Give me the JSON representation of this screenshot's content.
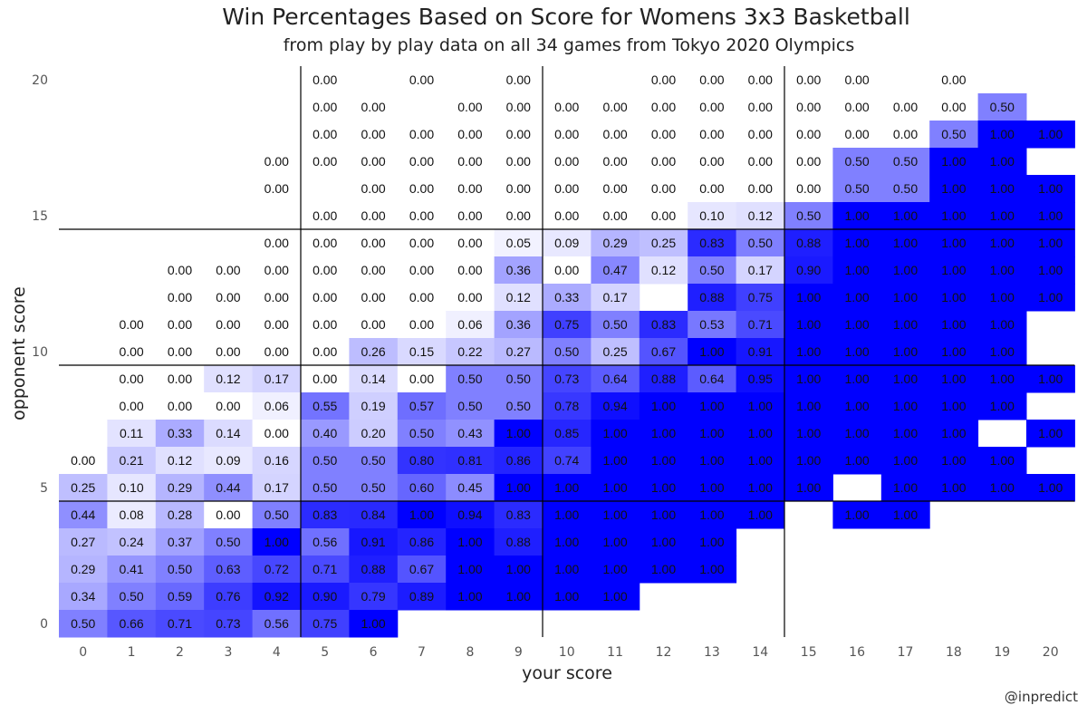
{
  "header": {
    "title": "Win Percentages Based on Score for Womens 3x3 Basketball",
    "subtitle": "from play by play data on all 34 games from Tokyo 2020 Olympics",
    "credit": "@inpredict"
  },
  "colors": {
    "low": "#ffffff",
    "high": "#0000ff",
    "divider": "#000000"
  },
  "chart_data": {
    "type": "heatmap",
    "xlabel": "your score",
    "ylabel": "opponent score",
    "x_ticks": [
      0,
      1,
      2,
      3,
      4,
      5,
      6,
      7,
      8,
      9,
      10,
      11,
      12,
      13,
      14,
      15,
      16,
      17,
      18,
      19,
      20
    ],
    "y_tick_labels": [
      "0",
      "5",
      "10",
      "15",
      "20"
    ],
    "y_tick_values": [
      0,
      5,
      10,
      15,
      20
    ],
    "xlim": [
      0,
      20
    ],
    "ylim": [
      0,
      20
    ],
    "color_range": [
      0,
      1
    ],
    "divider_x": [
      4.5,
      9.5,
      14.5
    ],
    "divider_y": [
      4.5,
      9.5,
      14.5
    ],
    "rows": [
      {
        "opp": 20,
        "cells": [
          null,
          null,
          null,
          null,
          null,
          "0.00",
          null,
          "0.00",
          null,
          "0.00",
          null,
          null,
          "0.00",
          "0.00",
          "0.00",
          "0.00",
          "0.00",
          null,
          "0.00",
          null,
          null
        ]
      },
      {
        "opp": 19,
        "cells": [
          null,
          null,
          null,
          null,
          null,
          "0.00",
          "0.00",
          null,
          "0.00",
          "0.00",
          "0.00",
          "0.00",
          "0.00",
          "0.00",
          "0.00",
          "0.00",
          "0.00",
          "0.00",
          "0.00",
          "0.50",
          null
        ]
      },
      {
        "opp": 18,
        "cells": [
          null,
          null,
          null,
          null,
          null,
          "0.00",
          "0.00",
          "0.00",
          "0.00",
          "0.00",
          "0.00",
          "0.00",
          "0.00",
          "0.00",
          "0.00",
          "0.00",
          "0.00",
          "0.00",
          "0.50",
          "1.00",
          "1.00"
        ]
      },
      {
        "opp": 17,
        "cells": [
          null,
          null,
          null,
          null,
          "0.00",
          "0.00",
          "0.00",
          "0.00",
          "0.00",
          "0.00",
          "0.00",
          "0.00",
          "0.00",
          "0.00",
          "0.00",
          "0.00",
          "0.50",
          "0.50",
          "1.00",
          "1.00",
          null
        ]
      },
      {
        "opp": 16,
        "cells": [
          null,
          null,
          null,
          null,
          "0.00",
          null,
          "0.00",
          "0.00",
          "0.00",
          "0.00",
          "0.00",
          "0.00",
          "0.00",
          "0.00",
          "0.00",
          "0.00",
          "0.50",
          "0.50",
          "1.00",
          "1.00",
          "1.00"
        ]
      },
      {
        "opp": 15,
        "cells": [
          null,
          null,
          null,
          null,
          null,
          "0.00",
          "0.00",
          "0.00",
          "0.00",
          "0.00",
          "0.00",
          "0.00",
          "0.00",
          "0.10",
          "0.12",
          "0.50",
          "1.00",
          "1.00",
          "1.00",
          "1.00",
          "1.00"
        ]
      },
      {
        "opp": 14,
        "cells": [
          null,
          null,
          null,
          null,
          "0.00",
          "0.00",
          "0.00",
          "0.00",
          "0.00",
          "0.05",
          "0.09",
          "0.29",
          "0.25",
          "0.83",
          "0.50",
          "0.88",
          "1.00",
          "1.00",
          "1.00",
          "1.00",
          "1.00"
        ]
      },
      {
        "opp": 13,
        "cells": [
          null,
          null,
          "0.00",
          "0.00",
          "0.00",
          "0.00",
          "0.00",
          "0.00",
          "0.00",
          "0.36",
          "0.00",
          "0.47",
          "0.12",
          "0.50",
          "0.17",
          "0.90",
          "1.00",
          "1.00",
          "1.00",
          "1.00",
          "1.00"
        ]
      },
      {
        "opp": 12,
        "cells": [
          null,
          null,
          "0.00",
          "0.00",
          "0.00",
          "0.00",
          "0.00",
          "0.00",
          "0.00",
          "0.12",
          "0.33",
          "0.17",
          null,
          "0.88",
          "0.75",
          "1.00",
          "1.00",
          "1.00",
          "1.00",
          "1.00",
          "1.00"
        ]
      },
      {
        "opp": 11,
        "cells": [
          null,
          "0.00",
          "0.00",
          "0.00",
          "0.00",
          "0.00",
          "0.00",
          "0.00",
          "0.06",
          "0.36",
          "0.75",
          "0.50",
          "0.83",
          "0.53",
          "0.71",
          "1.00",
          "1.00",
          "1.00",
          "1.00",
          "1.00",
          null
        ]
      },
      {
        "opp": 10,
        "cells": [
          null,
          "0.00",
          "0.00",
          "0.00",
          "0.00",
          "0.00",
          "0.26",
          "0.15",
          "0.22",
          "0.27",
          "0.50",
          "0.25",
          "0.67",
          "1.00",
          "0.91",
          "1.00",
          "1.00",
          "1.00",
          "1.00",
          "1.00",
          null
        ]
      },
      {
        "opp": 9,
        "cells": [
          null,
          "0.00",
          "0.00",
          "0.12",
          "0.17",
          "0.00",
          "0.14",
          "0.00",
          "0.50",
          "0.50",
          "0.73",
          "0.64",
          "0.88",
          "0.64",
          "0.95",
          "1.00",
          "1.00",
          "1.00",
          "1.00",
          "1.00",
          "1.00"
        ]
      },
      {
        "opp": 8,
        "cells": [
          null,
          "0.00",
          "0.00",
          "0.00",
          "0.06",
          "0.55",
          "0.19",
          "0.57",
          "0.50",
          "0.50",
          "0.78",
          "0.94",
          "1.00",
          "1.00",
          "1.00",
          "1.00",
          "1.00",
          "1.00",
          "1.00",
          "1.00",
          null
        ]
      },
      {
        "opp": 7,
        "cells": [
          null,
          "0.11",
          "0.33",
          "0.14",
          "0.00",
          "0.40",
          "0.20",
          "0.50",
          "0.43",
          "1.00",
          "0.85",
          "1.00",
          "1.00",
          "1.00",
          "1.00",
          "1.00",
          "1.00",
          "1.00",
          "1.00",
          null,
          "1.00"
        ]
      },
      {
        "opp": 6,
        "cells": [
          "0.00",
          "0.21",
          "0.12",
          "0.09",
          "0.16",
          "0.50",
          "0.50",
          "0.80",
          "0.81",
          "0.86",
          "0.74",
          "1.00",
          "1.00",
          "1.00",
          "1.00",
          "1.00",
          "1.00",
          "1.00",
          "1.00",
          "1.00",
          null
        ]
      },
      {
        "opp": 5,
        "cells": [
          "0.25",
          "0.10",
          "0.29",
          "0.44",
          "0.17",
          "0.50",
          "0.50",
          "0.60",
          "0.45",
          "1.00",
          "1.00",
          "1.00",
          "1.00",
          "1.00",
          "1.00",
          "1.00",
          null,
          "1.00",
          "1.00",
          "1.00",
          "1.00"
        ]
      },
      {
        "opp": 4,
        "cells": [
          "0.44",
          "0.08",
          "0.28",
          "0.00",
          "0.50",
          "0.83",
          "0.84",
          "1.00",
          "0.94",
          "0.83",
          "1.00",
          "1.00",
          "1.00",
          "1.00",
          "1.00",
          null,
          "1.00",
          "1.00",
          null,
          null,
          null
        ]
      },
      {
        "opp": 3,
        "cells": [
          "0.27",
          "0.24",
          "0.37",
          "0.50",
          "1.00",
          "0.56",
          "0.91",
          "0.86",
          "1.00",
          "0.88",
          "1.00",
          "1.00",
          "1.00",
          "1.00",
          null,
          null,
          null,
          null,
          null,
          null,
          null
        ]
      },
      {
        "opp": 2,
        "cells": [
          "0.29",
          "0.41",
          "0.50",
          "0.63",
          "0.72",
          "0.71",
          "0.88",
          "0.67",
          "1.00",
          "1.00",
          "1.00",
          "1.00",
          "1.00",
          "1.00",
          null,
          null,
          null,
          null,
          null,
          null,
          null
        ]
      },
      {
        "opp": 1,
        "cells": [
          "0.34",
          "0.50",
          "0.59",
          "0.76",
          "0.92",
          "0.90",
          "0.79",
          "0.89",
          "1.00",
          "1.00",
          "1.00",
          "1.00",
          null,
          null,
          null,
          null,
          null,
          null,
          null,
          null,
          null
        ]
      },
      {
        "opp": 0,
        "cells": [
          "0.50",
          "0.66",
          "0.71",
          "0.73",
          "0.56",
          "0.75",
          "1.00",
          null,
          null,
          null,
          null,
          null,
          null,
          null,
          null,
          null,
          null,
          null,
          null,
          null,
          null
        ]
      }
    ]
  }
}
